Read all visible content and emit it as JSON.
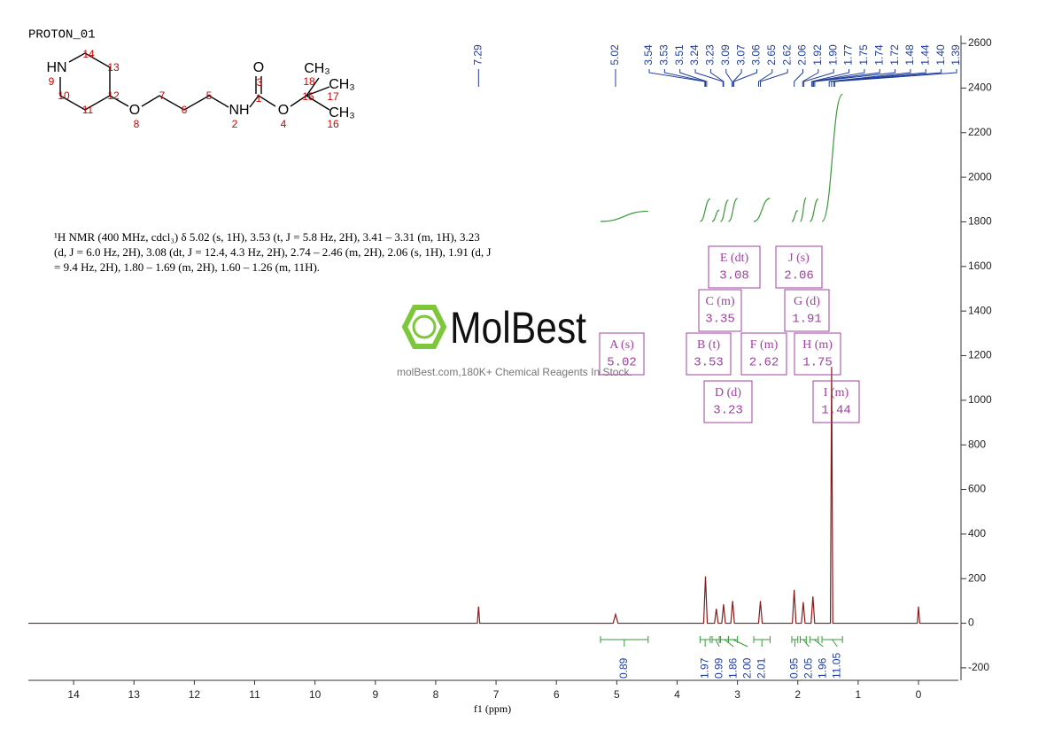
{
  "title": "PROTON_01",
  "structure": {
    "atoms": [
      "HN",
      "O",
      "NH",
      "O",
      "O",
      "CH₃",
      "CH₃",
      "CH₃"
    ],
    "numbers": [
      "14",
      "13",
      "9",
      "10",
      "12",
      "11",
      "8",
      "7",
      "6",
      "5",
      "2",
      "3",
      "1",
      "4",
      "18",
      "15",
      "17",
      "16"
    ]
  },
  "description": [
    "¹H NMR (400 MHz, cdcl₃) δ 5.02 (s, 1H), 3.53 (t, J = 5.8 Hz, 2H), 3.41 – 3.31 (m, 1H), 3.23",
    "(d, J = 6.0 Hz, 2H), 3.08 (dt, J = 12.4, 4.3 Hz, 2H), 2.74 – 2.46 (m, 2H), 2.06 (s, 1H), 1.91 (d, J",
    "= 9.4 Hz, 2H), 1.80 – 1.69 (m, 2H), 1.60 – 1.26 (m, 11H)."
  ],
  "watermark": {
    "brand": "MolBest",
    "tagline": "molBest.com,180K+ Chemical Reagents In Stock."
  },
  "chart_data": {
    "type": "line",
    "color": "#8b1a1a",
    "x": [
      14.75,
      7.31,
      7.29,
      7.27,
      5.06,
      5.02,
      4.98,
      3.56,
      3.53,
      3.5,
      3.38,
      3.35,
      3.32,
      3.26,
      3.23,
      3.2,
      3.11,
      3.08,
      3.05,
      2.65,
      2.62,
      2.59,
      2.09,
      2.06,
      2.03,
      1.94,
      1.91,
      1.88,
      1.78,
      1.75,
      1.72,
      1.46,
      1.44,
      1.42,
      0.02,
      0,
      -0.02,
      -0.66
    ],
    "values": [
      0,
      0,
      75,
      0,
      0,
      40,
      0,
      0,
      210,
      0,
      0,
      65,
      0,
      0,
      85,
      0,
      0,
      100,
      0,
      0,
      100,
      0,
      0,
      150,
      0,
      0,
      95,
      0,
      0,
      120,
      0,
      0,
      1150,
      0,
      0,
      75,
      0,
      0
    ],
    "xlim": [
      14.75,
      -0.66
    ],
    "xticks": [
      14,
      13,
      12,
      11,
      10,
      9,
      8,
      7,
      6,
      5,
      4,
      3,
      2,
      1,
      0
    ],
    "xlabel": "f1 (ppm)",
    "ylim": [
      -256,
      2636
    ],
    "yticks": [
      -200,
      0,
      200,
      400,
      600,
      800,
      1000,
      1200,
      1400,
      1600,
      1800,
      2000,
      2200,
      2400,
      2600
    ],
    "peak_labels": [
      {
        "value": 7.29,
        "label": "7.29"
      },
      {
        "value": 5.02,
        "label": "5.02"
      },
      {
        "value": 3.54,
        "label": "3.54"
      },
      {
        "value": 3.53,
        "label": "3.53"
      },
      {
        "value": 3.51,
        "label": "3.51"
      },
      {
        "value": 3.24,
        "label": "3.24"
      },
      {
        "value": 3.23,
        "label": "3.23"
      },
      {
        "value": 3.09,
        "label": "3.09"
      },
      {
        "value": 3.07,
        "label": "3.07"
      },
      {
        "value": 3.06,
        "label": "3.06"
      },
      {
        "value": 2.65,
        "label": "2.65"
      },
      {
        "value": 2.62,
        "label": "2.62"
      },
      {
        "value": 2.06,
        "label": "2.06"
      },
      {
        "value": 1.92,
        "label": "1.92"
      },
      {
        "value": 1.9,
        "label": "1.90"
      },
      {
        "value": 1.77,
        "label": "1.77"
      },
      {
        "value": 1.75,
        "label": "1.75"
      },
      {
        "value": 1.74,
        "label": "1.74"
      },
      {
        "value": 1.72,
        "label": "1.72"
      },
      {
        "value": 1.48,
        "label": "1.48"
      },
      {
        "value": 1.44,
        "label": "1.44"
      },
      {
        "value": 1.4,
        "label": "1.40"
      },
      {
        "value": 1.39,
        "label": "1.39"
      }
    ],
    "multiplets": [
      {
        "name": "A (s)",
        "shift": "5.02"
      },
      {
        "name": "B (t)",
        "shift": "3.53"
      },
      {
        "name": "C (m)",
        "shift": "3.35"
      },
      {
        "name": "D (d)",
        "shift": "3.23"
      },
      {
        "name": "E (dt)",
        "shift": "3.08"
      },
      {
        "name": "F (m)",
        "shift": "2.62"
      },
      {
        "name": "G (d)",
        "shift": "1.91"
      },
      {
        "name": "H (m)",
        "shift": "1.75"
      },
      {
        "name": "I (m)",
        "shift": "1.44"
      },
      {
        "name": "J (s)",
        "shift": "2.06"
      }
    ],
    "integrals": {
      "ranges": [
        [
          5.27,
          4.48
        ],
        [
          3.62,
          3.45
        ],
        [
          3.42,
          3.3
        ],
        [
          3.28,
          3.15
        ],
        [
          3.15,
          3.0
        ],
        [
          2.73,
          2.46
        ],
        [
          2.1,
          2.0
        ],
        [
          1.96,
          1.86
        ],
        [
          1.8,
          1.66
        ],
        [
          1.6,
          1.26
        ]
      ],
      "values": [
        0.89,
        1.97,
        0.99,
        1.86,
        2.0,
        2.01,
        0.95,
        2.05,
        1.96,
        11.05
      ],
      "value_labels": [
        "0.89",
        "1.97",
        "0.99",
        "1.86",
        "2.00",
        "2.01",
        "0.95",
        "2.05",
        "1.96",
        "11.05"
      ]
    }
  }
}
